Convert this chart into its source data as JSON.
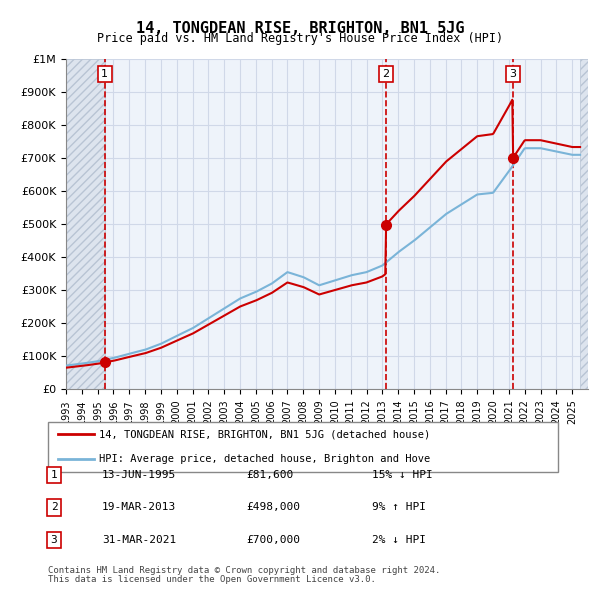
{
  "title": "14, TONGDEAN RISE, BRIGHTON, BN1 5JG",
  "subtitle": "Price paid vs. HM Land Registry's House Price Index (HPI)",
  "legend_line1": "14, TONGDEAN RISE, BRIGHTON, BN1 5JG (detached house)",
  "legend_line2": "HPI: Average price, detached house, Brighton and Hove",
  "footer1": "Contains HM Land Registry data © Crown copyright and database right 2024.",
  "footer2": "This data is licensed under the Open Government Licence v3.0.",
  "transactions": [
    {
      "num": 1,
      "date": "13-JUN-1995",
      "price": 81600,
      "pct": "15%",
      "dir": "↓",
      "year": 1995.45
    },
    {
      "num": 2,
      "date": "19-MAR-2013",
      "price": 498000,
      "pct": "9%",
      "dir": "↑",
      "year": 2013.21
    },
    {
      "num": 3,
      "date": "31-MAR-2021",
      "price": 700000,
      "pct": "2%",
      "dir": "↓",
      "year": 2021.25
    }
  ],
  "xmin": 1993,
  "xmax": 2026,
  "ymin": 0,
  "ymax": 1000000,
  "yticks": [
    0,
    100000,
    200000,
    300000,
    400000,
    500000,
    600000,
    700000,
    800000,
    900000,
    1000000
  ],
  "ytick_labels": [
    "£0",
    "£100K",
    "£200K",
    "£300K",
    "£400K",
    "£500K",
    "£600K",
    "£700K",
    "£800K",
    "£900K",
    "£1M"
  ],
  "xticks": [
    1993,
    1994,
    1995,
    1996,
    1997,
    1998,
    1999,
    2000,
    2001,
    2002,
    2003,
    2004,
    2005,
    2006,
    2007,
    2008,
    2009,
    2010,
    2011,
    2012,
    2013,
    2014,
    2015,
    2016,
    2017,
    2018,
    2019,
    2020,
    2021,
    2022,
    2023,
    2024,
    2025
  ],
  "hpi_color": "#7ab4d8",
  "price_color": "#cc0000",
  "vline_color": "#cc0000",
  "marker_color": "#cc0000",
  "hatch_color": "#c0c0c0",
  "grid_color": "#d0d8e8",
  "bg_color": "#eef3fa",
  "plot_bg": "#ffffff"
}
